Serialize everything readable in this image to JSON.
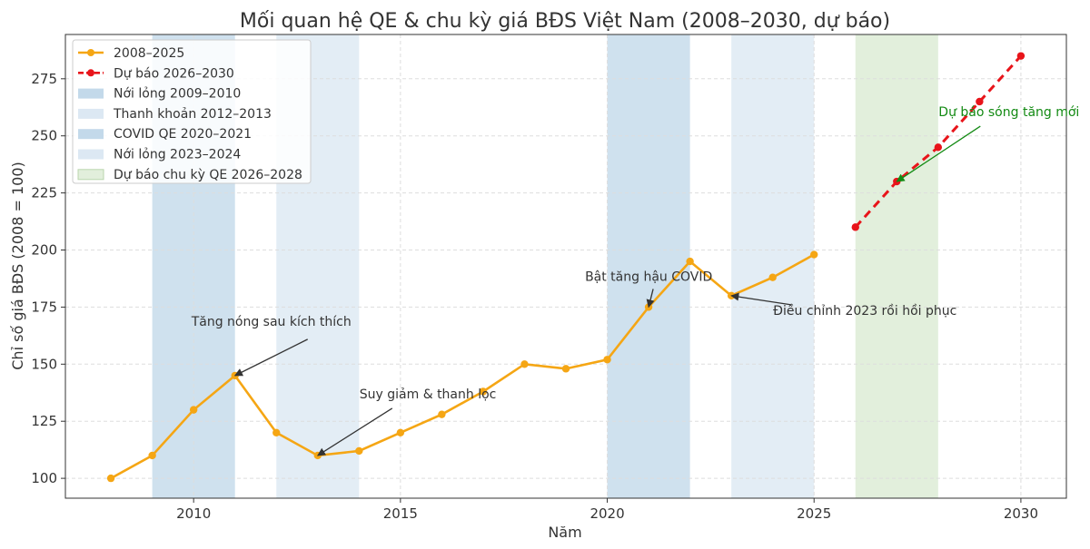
{
  "chart_data": {
    "type": "line",
    "title": "Mối quan hệ QE & chu kỳ giá BĐS Việt Nam (2008–2030, dự báo)",
    "xlabel": "Năm",
    "ylabel": "Chỉ số giá BĐS (2008 = 100)",
    "xlim": [
      2006.9,
      2031.1
    ],
    "ylim": [
      91.3,
      294.4
    ],
    "xticks": [
      2010,
      2015,
      2020,
      2025,
      2030
    ],
    "yticks": [
      100,
      125,
      150,
      175,
      200,
      225,
      250,
      275
    ],
    "grid": true,
    "legend_position": "top-left",
    "series": [
      {
        "name": "2008–2025",
        "color": "#f5a614",
        "style": "solid",
        "x": [
          2008,
          2009,
          2010,
          2011,
          2012,
          2013,
          2014,
          2015,
          2016,
          2017,
          2018,
          2019,
          2020,
          2021,
          2022,
          2023,
          2024,
          2025
        ],
        "y": [
          100,
          110,
          130,
          145,
          120,
          110,
          112,
          120,
          128,
          138,
          150,
          148,
          152,
          175,
          195,
          180,
          188,
          198
        ]
      },
      {
        "name": "Dự báo 2026–2030",
        "color": "#e8141a",
        "style": "dashed",
        "x": [
          2026,
          2027,
          2028,
          2029,
          2030
        ],
        "y": [
          210,
          230,
          245,
          265,
          285
        ]
      }
    ],
    "spans": [
      {
        "name": "Nới lỏng 2009–2010",
        "start": 2009,
        "end": 2011,
        "color": "#c3d9ea"
      },
      {
        "name": "Thanh khoản 2012–2013",
        "start": 2012,
        "end": 2014,
        "color": "#dce8f3"
      },
      {
        "name": "COVID QE 2020–2021",
        "start": 2020,
        "end": 2022,
        "color": "#c3d9ea"
      },
      {
        "name": "Nới lỏng 2023–2024",
        "start": 2023,
        "end": 2025,
        "color": "#dce8f3"
      },
      {
        "name": "Dự báo chu kỳ QE 2026–2028",
        "start": 2026,
        "end": 2028,
        "color": "#e2efdc"
      }
    ],
    "annotations": [
      {
        "text": "Tăng nóng sau kích thích",
        "x": 2011,
        "y": 145,
        "color": "#333333"
      },
      {
        "text": "Suy giảm & thanh lọc",
        "x": 2013,
        "y": 110,
        "color": "#333333"
      },
      {
        "text": "Bật tăng hậu COVID",
        "x": 2021,
        "y": 175,
        "color": "#333333"
      },
      {
        "text": "Điều chỉnh 2023 rồi hồi phục",
        "x": 2023,
        "y": 180,
        "color": "#333333"
      },
      {
        "text": "Dự báo sóng tăng mới",
        "x": 2027,
        "y": 230,
        "color": "#138a13"
      }
    ]
  }
}
